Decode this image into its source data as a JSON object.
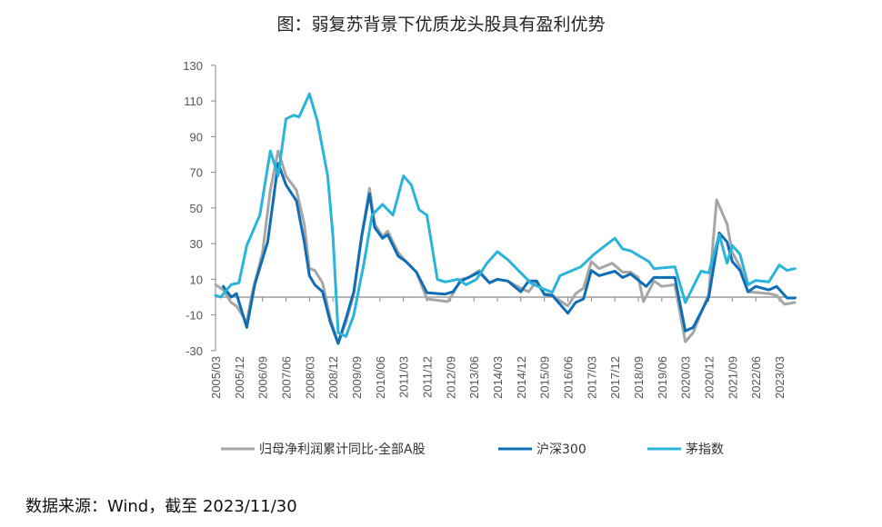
{
  "chart_data": {
    "type": "line",
    "title": "图：弱复苏背景下优质龙头股具有盈利优势",
    "xlabel": "",
    "ylabel": "",
    "ylim": [
      -30,
      130
    ],
    "yticks": [
      130,
      110,
      90,
      70,
      50,
      30,
      10,
      -10,
      -30
    ],
    "x_start": "2005/03",
    "x_unit": "months since 2005/03",
    "xticks": [
      "2005/03",
      "2005/12",
      "2006/09",
      "2007/06",
      "2008/03",
      "2008/12",
      "2009/09",
      "2010/06",
      "2011/03",
      "2011/12",
      "2012/09",
      "2013/06",
      "2014/03",
      "2014/12",
      "2015/09",
      "2016/06",
      "2017/03",
      "2017/12",
      "2018/09",
      "2019/06",
      "2020/03",
      "2020/12",
      "2021/09",
      "2022/06",
      "2023/03"
    ],
    "legend_position": "bottom",
    "series": [
      {
        "name": "归母净利润累计同比-全部A股",
        "color": "#a6a6a6",
        "points": [
          [
            0,
            7
          ],
          [
            3,
            4
          ],
          [
            6,
            -3
          ],
          [
            8,
            -5
          ],
          [
            12,
            -14
          ],
          [
            14,
            2
          ],
          [
            18,
            25
          ],
          [
            21,
            60
          ],
          [
            24,
            82
          ],
          [
            27,
            68
          ],
          [
            31,
            60
          ],
          [
            34,
            41
          ],
          [
            36,
            16
          ],
          [
            38,
            15
          ],
          [
            41,
            8
          ],
          [
            44,
            -12
          ],
          [
            47,
            -26
          ],
          [
            50,
            -14
          ],
          [
            53,
            2
          ],
          [
            56,
            34
          ],
          [
            59,
            61
          ],
          [
            61,
            41
          ],
          [
            64,
            34
          ],
          [
            66,
            37
          ],
          [
            70,
            25
          ],
          [
            73,
            20
          ],
          [
            77,
            14
          ],
          [
            81,
            -1
          ],
          [
            86,
            -2
          ],
          [
            89,
            -2.5
          ],
          [
            91,
            2
          ],
          [
            94,
            10
          ],
          [
            97,
            11
          ],
          [
            101,
            15
          ],
          [
            105,
            8
          ],
          [
            108,
            10
          ],
          [
            112,
            9
          ],
          [
            117,
            5
          ],
          [
            120,
            3
          ],
          [
            123,
            9
          ],
          [
            126,
            2
          ],
          [
            129,
            1
          ],
          [
            135,
            -5
          ],
          [
            138,
            2
          ],
          [
            141,
            5
          ],
          [
            144,
            20
          ],
          [
            147,
            16
          ],
          [
            152,
            19
          ],
          [
            156,
            14
          ],
          [
            159,
            14
          ],
          [
            162,
            11
          ],
          [
            164,
            -2.5
          ],
          [
            168,
            9
          ],
          [
            171,
            6
          ],
          [
            176,
            7
          ],
          [
            180,
            -25
          ],
          [
            183,
            -20
          ],
          [
            189,
            2
          ],
          [
            192,
            54.5
          ],
          [
            196,
            41
          ],
          [
            198,
            25
          ],
          [
            201,
            17
          ],
          [
            204,
            3
          ],
          [
            212,
            2
          ],
          [
            215,
            1
          ],
          [
            218,
            -4
          ],
          [
            222,
            -3
          ]
        ]
      },
      {
        "name": "沪深300",
        "color": "#0e6db5",
        "points": [
          [
            3,
            6
          ],
          [
            6,
            0
          ],
          [
            8,
            2
          ],
          [
            12,
            -17
          ],
          [
            15,
            7
          ],
          [
            20,
            31
          ],
          [
            24,
            75
          ],
          [
            27,
            63
          ],
          [
            31,
            54
          ],
          [
            34,
            31
          ],
          [
            36,
            12
          ],
          [
            38,
            7
          ],
          [
            41,
            3
          ],
          [
            44,
            -14
          ],
          [
            47,
            -26
          ],
          [
            50,
            -12
          ],
          [
            53,
            3
          ],
          [
            56,
            34
          ],
          [
            59,
            58
          ],
          [
            61,
            39
          ],
          [
            64,
            33
          ],
          [
            66,
            35
          ],
          [
            70,
            23
          ],
          [
            73,
            20
          ],
          [
            77,
            14
          ],
          [
            81,
            2.5
          ],
          [
            88,
            1.7
          ],
          [
            91,
            3
          ],
          [
            94,
            9
          ],
          [
            97,
            11
          ],
          [
            101,
            14
          ],
          [
            105,
            8
          ],
          [
            108,
            10
          ],
          [
            112,
            9
          ],
          [
            117,
            3
          ],
          [
            120,
            9
          ],
          [
            123,
            9
          ],
          [
            126,
            1.4
          ],
          [
            129,
            1
          ],
          [
            135,
            -9
          ],
          [
            138,
            -3
          ],
          [
            141,
            -1
          ],
          [
            144,
            15
          ],
          [
            147,
            12
          ],
          [
            153,
            14.5
          ],
          [
            156,
            11
          ],
          [
            159,
            13
          ],
          [
            165,
            6
          ],
          [
            168,
            11
          ],
          [
            176,
            11
          ],
          [
            180,
            -19
          ],
          [
            183,
            -17
          ],
          [
            189,
            0
          ],
          [
            193,
            36
          ],
          [
            196,
            31
          ],
          [
            198,
            20
          ],
          [
            201,
            15
          ],
          [
            204,
            3
          ],
          [
            207,
            6
          ],
          [
            212,
            4
          ],
          [
            215,
            6
          ],
          [
            219,
            -0.5
          ],
          [
            222,
            -0.5
          ]
        ]
      },
      {
        "name": "茅指数",
        "color": "#2ab4d9",
        "points": [
          [
            0,
            1
          ],
          [
            2,
            0
          ],
          [
            6,
            7
          ],
          [
            9,
            8
          ],
          [
            12,
            29
          ],
          [
            17,
            46
          ],
          [
            21,
            82
          ],
          [
            24,
            68
          ],
          [
            27,
            100
          ],
          [
            30,
            102
          ],
          [
            32,
            101
          ],
          [
            36,
            114
          ],
          [
            39,
            99
          ],
          [
            43,
            68
          ],
          [
            45,
            34
          ],
          [
            47,
            -20
          ],
          [
            50,
            -22
          ],
          [
            53,
            -10
          ],
          [
            57,
            20
          ],
          [
            60,
            46
          ],
          [
            64,
            52
          ],
          [
            68,
            46
          ],
          [
            72,
            68
          ],
          [
            75,
            63
          ],
          [
            78,
            49
          ],
          [
            81,
            46
          ],
          [
            85,
            10
          ],
          [
            88,
            8.5
          ],
          [
            93,
            10
          ],
          [
            96,
            7
          ],
          [
            100,
            10
          ],
          [
            104,
            19
          ],
          [
            108,
            25.5
          ],
          [
            112,
            21
          ],
          [
            117,
            13.6
          ],
          [
            121,
            7.7
          ],
          [
            125,
            5
          ],
          [
            129,
            2.6
          ],
          [
            132,
            12
          ],
          [
            140,
            17
          ],
          [
            145,
            24
          ],
          [
            153,
            33
          ],
          [
            156,
            27
          ],
          [
            159,
            26
          ],
          [
            166,
            20
          ],
          [
            168,
            16
          ],
          [
            176,
            17
          ],
          [
            180,
            -3
          ],
          [
            186,
            14.5
          ],
          [
            189,
            13.6
          ],
          [
            193,
            35
          ],
          [
            196,
            19
          ],
          [
            198,
            29
          ],
          [
            201,
            24
          ],
          [
            204,
            7
          ],
          [
            207,
            9.4
          ],
          [
            212,
            8.5
          ],
          [
            216,
            18
          ],
          [
            219,
            15
          ],
          [
            222,
            16
          ]
        ]
      }
    ]
  },
  "source": "数据来源：Wind，截至 2023/11/30"
}
